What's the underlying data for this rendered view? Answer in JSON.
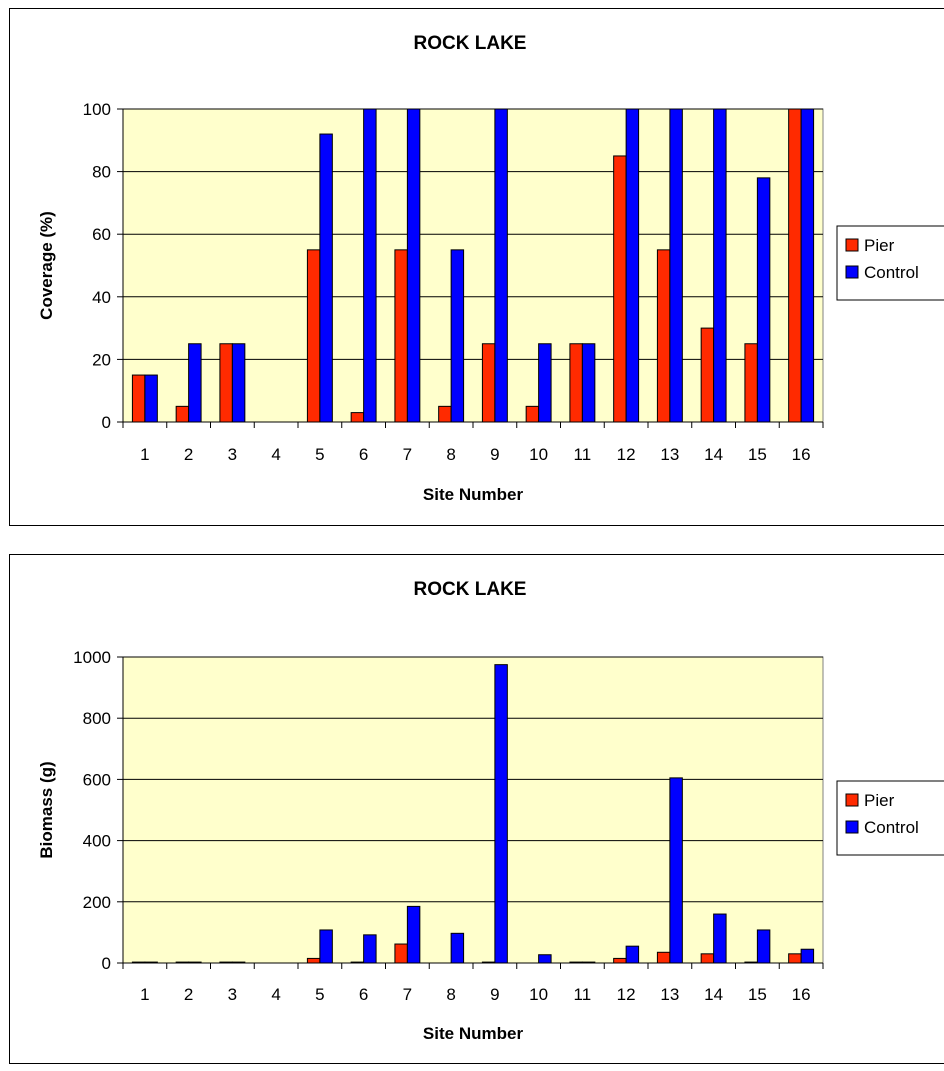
{
  "chart_data": [
    {
      "type": "bar",
      "title": "ROCK LAKE",
      "xlabel": "Site Number",
      "ylabel": "Coverage (%)",
      "ylim": [
        0,
        100
      ],
      "yticks": [
        "0",
        "20",
        "40",
        "60",
        "80",
        "100"
      ],
      "categories": [
        "1",
        "2",
        "3",
        "4",
        "5",
        "6",
        "7",
        "8",
        "9",
        "10",
        "11",
        "12",
        "13",
        "14",
        "15",
        "16"
      ],
      "series": [
        {
          "name": "Pier",
          "color": "#ff2a00",
          "values": [
            15,
            5,
            25,
            0,
            55,
            3,
            55,
            5,
            25,
            5,
            25,
            85,
            55,
            30,
            25,
            100
          ]
        },
        {
          "name": "Control",
          "color": "#0000ff",
          "values": [
            15,
            25,
            25,
            0,
            92,
            100,
            100,
            55,
            100,
            25,
            25,
            100,
            100,
            100,
            78,
            100
          ]
        }
      ],
      "grid": true,
      "plot_background": "#ffffcc",
      "legend_position": "right"
    },
    {
      "type": "bar",
      "title": "ROCK LAKE",
      "xlabel": "Site Number",
      "ylabel": "Biomass (g)",
      "ylim": [
        0,
        1000
      ],
      "yticks": [
        "0",
        "200",
        "400",
        "600",
        "800",
        "1000"
      ],
      "categories": [
        "1",
        "2",
        "3",
        "4",
        "5",
        "6",
        "7",
        "8",
        "9",
        "10",
        "11",
        "12",
        "13",
        "14",
        "15",
        "16"
      ],
      "series": [
        {
          "name": "Pier",
          "color": "#ff2a00",
          "values": [
            3,
            3,
            3,
            0,
            15,
            3,
            62,
            0,
            3,
            0,
            3,
            15,
            35,
            30,
            3,
            30
          ]
        },
        {
          "name": "Control",
          "color": "#0000ff",
          "values": [
            3,
            3,
            3,
            0,
            108,
            92,
            185,
            97,
            975,
            27,
            3,
            55,
            605,
            160,
            108,
            45
          ]
        }
      ],
      "grid": true,
      "plot_background": "#ffffcc",
      "legend_position": "right"
    }
  ]
}
